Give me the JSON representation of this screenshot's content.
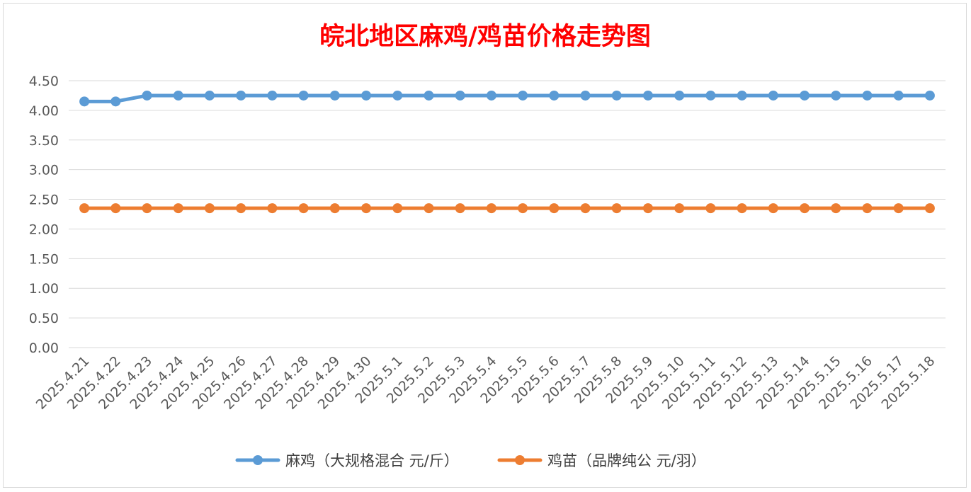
{
  "chart_data": {
    "type": "line",
    "title": "皖北地区麻鸡/鸡苗价格走势图",
    "categories": [
      "2025.4.21",
      "2025.4.22",
      "2025.4.23",
      "2025.4.24",
      "2025.4.25",
      "2025.4.26",
      "2025.4.27",
      "2025.4.28",
      "2025.4.29",
      "2025.4.30",
      "2025.5.1",
      "2025.5.2",
      "2025.5.3",
      "2025.5.4",
      "2025.5.5",
      "2025.5.6",
      "2025.5.7",
      "2025.5.8",
      "2025.5.9",
      "2025.5.10",
      "2025.5.11",
      "2025.5.12",
      "2025.5.13",
      "2025.5.14",
      "2025.5.15",
      "2025.5.16",
      "2025.5.17",
      "2025.5.18"
    ],
    "ylim": [
      0,
      4.5
    ],
    "yticks": [
      "0.00",
      "0.50",
      "1.00",
      "1.50",
      "2.00",
      "2.50",
      "3.00",
      "3.50",
      "4.00",
      "4.50"
    ],
    "grid": true,
    "legend_position": "bottom",
    "series": [
      {
        "name": "麻鸡（大规格混合 元/斤）",
        "color": "#5b9bd5",
        "values": [
          4.15,
          4.15,
          4.25,
          4.25,
          4.25,
          4.25,
          4.25,
          4.25,
          4.25,
          4.25,
          4.25,
          4.25,
          4.25,
          4.25,
          4.25,
          4.25,
          4.25,
          4.25,
          4.25,
          4.25,
          4.25,
          4.25,
          4.25,
          4.25,
          4.25,
          4.25,
          4.25,
          4.25
        ]
      },
      {
        "name": "鸡苗（品牌纯公 元/羽）",
        "color": "#ed7d31",
        "values": [
          2.35,
          2.35,
          2.35,
          2.35,
          2.35,
          2.35,
          2.35,
          2.35,
          2.35,
          2.35,
          2.35,
          2.35,
          2.35,
          2.35,
          2.35,
          2.35,
          2.35,
          2.35,
          2.35,
          2.35,
          2.35,
          2.35,
          2.35,
          2.35,
          2.35,
          2.35,
          2.35,
          2.35
        ]
      }
    ]
  }
}
